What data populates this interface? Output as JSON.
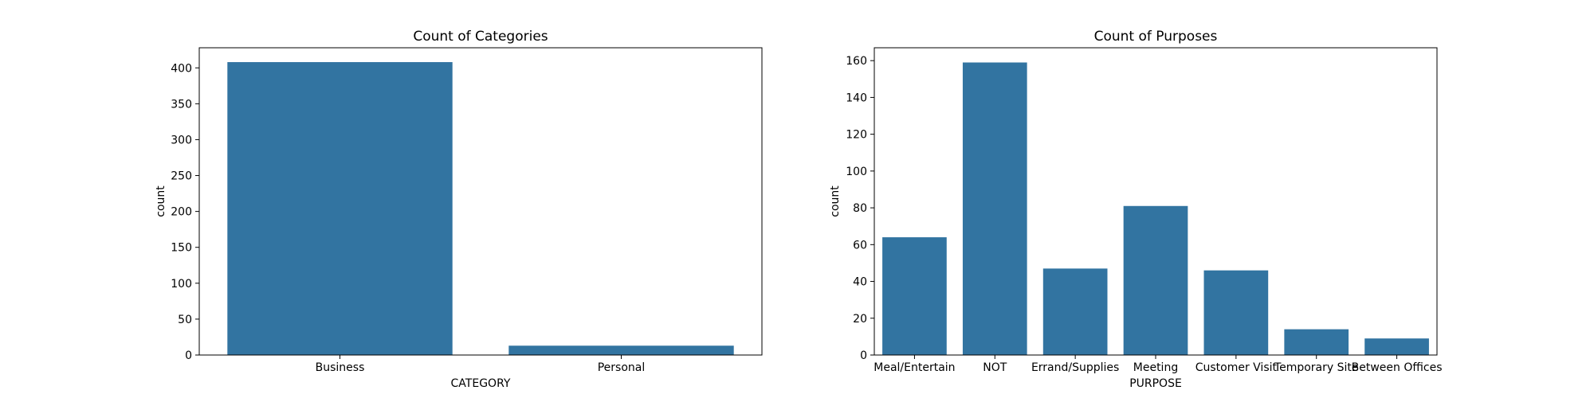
{
  "chart_data": [
    {
      "type": "bar",
      "title": "Count of Categories",
      "xlabel": "CATEGORY",
      "ylabel": "count",
      "categories": [
        "Business",
        "Personal"
      ],
      "values": [
        408,
        13
      ],
      "ylim": [
        0,
        428
      ],
      "yticks": [
        0,
        50,
        100,
        150,
        200,
        250,
        300,
        350,
        400
      ],
      "bar_color": "#3274a1",
      "grid": false
    },
    {
      "type": "bar",
      "title": "Count of Purposes",
      "xlabel": "PURPOSE",
      "ylabel": "count",
      "categories": [
        "Meal/Entertain",
        "NOT",
        "Errand/Supplies",
        "Meeting",
        "Customer Visit",
        "Temporary Site",
        "Between Offices"
      ],
      "values": [
        64,
        159,
        47,
        81,
        46,
        14,
        9
      ],
      "ylim": [
        0,
        167
      ],
      "yticks": [
        0,
        20,
        40,
        60,
        80,
        100,
        120,
        140,
        160
      ],
      "bar_color": "#3274a1",
      "grid": false
    }
  ]
}
